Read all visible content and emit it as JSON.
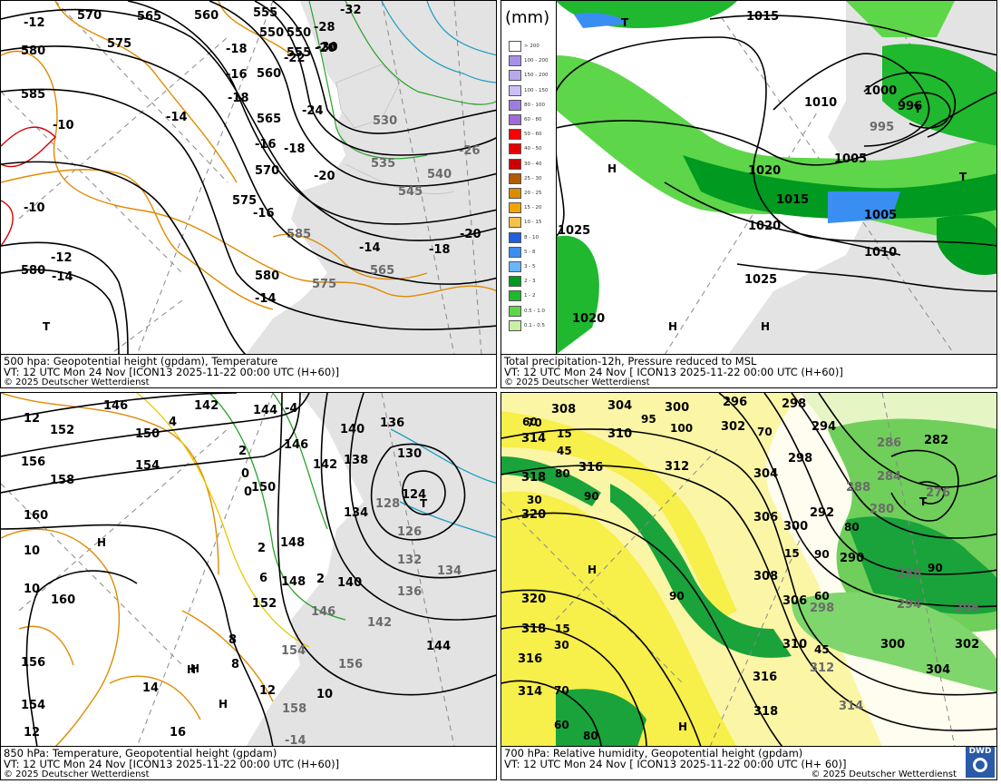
{
  "panels": [
    {
      "id": "p1",
      "title_line": "500 hpa: Geopotential height (gpdam), Temperature",
      "valid_line": "VT: 12 UTC Mon  24 Nov [ICON13 2025-11-22 00:00 UTC (H+60)]",
      "copyright": "© 2025 Deutscher Wetterdienst",
      "height_labels": [
        "570",
        "565",
        "560",
        "555",
        "550",
        "-32",
        "575",
        "580",
        "585",
        "580",
        "575",
        "570",
        "565",
        "560",
        "555",
        "550",
        "545",
        "540",
        "535",
        "530",
        "565",
        "575",
        "580",
        "585"
      ],
      "temp_labels": [
        "-12",
        "-10",
        "-10",
        "-12",
        "-14",
        "-14",
        "-14",
        "-16",
        "-16",
        "-18",
        "-18",
        "-20",
        "-22",
        "-24",
        "-26",
        "-28",
        "-18",
        "-20",
        "-16",
        "-14",
        "-18",
        "-20",
        "-30"
      ],
      "markers": [
        "T"
      ]
    },
    {
      "id": "p2",
      "title_line": "Total precipitation-12h, Pressure reduced to MSL",
      "valid_line": "VT: 12 UTC Mon  24 Nov [ ICON13 2025-11-22 00:00 UTC (H+60)]",
      "copyright": "© 2025 Deutscher Wetterdienst",
      "legend_unit": "(mm)",
      "legend_classes": [
        "> 200",
        "100 - 200",
        "150 - 200",
        "100 - 150",
        "80 - 100",
        "60 - 80",
        "50 - 60",
        "40 - 50",
        "30 - 40",
        "25 - 30",
        "20 - 25",
        "15 - 20",
        "10 - 15",
        "8 - 10",
        "5 - 8",
        "3 - 5",
        "2 - 3",
        "1 - 2",
        "0.5 - 1.0",
        "0.1 - 0.5"
      ],
      "legend_colors": [
        "#ffffff",
        "#a98fe6",
        "#b9a8ee",
        "#cdbff5",
        "#9f7de0",
        "#a06bd8",
        "#ff0000",
        "#e60000",
        "#cc0000",
        "#b25c00",
        "#d98c00",
        "#f2a400",
        "#f7c14a",
        "#2060e0",
        "#3a8ef2",
        "#6ab5fa",
        "#009a20",
        "#1fb82e",
        "#5ed64a",
        "#c7f0a2"
      ],
      "pressure_labels": [
        "1015",
        "1010",
        "1000",
        "996",
        "995",
        "1005",
        "1020",
        "1015",
        "1020",
        "1005",
        "1010",
        "1025",
        "1020",
        "1025"
      ],
      "markers": [
        "H",
        "H",
        "H",
        "T",
        "T",
        "T"
      ]
    },
    {
      "id": "p3",
      "title_line": "850 hPa:  Temperature, Geopotential height (gpdam)",
      "valid_line": "VT: 12 UTC Mon  24 Nov [ICON13 2025-11-22 00:00 UTC (H+60)]",
      "copyright": "© 2025 Deutscher Wetterdienst",
      "height_labels": [
        "146",
        "142",
        "144",
        "152",
        "150",
        "156",
        "158",
        "154",
        "160",
        "146",
        "140",
        "136",
        "142",
        "138",
        "130",
        "124",
        "126",
        "132",
        "134",
        "136",
        "142",
        "148",
        "146",
        "152",
        "150",
        "154",
        "156",
        "158",
        "156",
        "154",
        "160",
        "148",
        "144",
        "140",
        "134",
        "128"
      ],
      "temp_labels": [
        "12",
        "10",
        "10",
        "8",
        "6",
        "2",
        "0",
        "2",
        "4",
        "-4",
        "8",
        "14",
        "12",
        "10",
        "16",
        "12",
        "-14",
        "2",
        "0"
      ],
      "markers": [
        "H",
        "H",
        "H",
        "H",
        "T"
      ]
    },
    {
      "id": "p4",
      "title_line": "700 hPa:  Relative humidity, Geopotential height (gpdam)",
      "valid_line": "VT: 12 UTC Mon  24 Nov [ ICON13 2025-11-22 00:00 UTC (H+ 60)]",
      "copyright": "© 2025 Deutscher Wetterdienst",
      "height_labels": [
        "308",
        "304",
        "300",
        "296",
        "298",
        "294",
        "302",
        "310",
        "314",
        "316",
        "312",
        "318",
        "320",
        "304",
        "306",
        "300",
        "298",
        "292",
        "288",
        "286",
        "284",
        "282",
        "276",
        "280",
        "290",
        "288",
        "294",
        "296",
        "302",
        "300",
        "304",
        "298",
        "306",
        "308",
        "310",
        "312",
        "314",
        "316",
        "318",
        "320",
        "318",
        "316",
        "314"
      ],
      "rh_labels": [
        "60",
        "70",
        "15",
        "45",
        "95",
        "100",
        "70",
        "80",
        "90",
        "30",
        "90",
        "15",
        "90",
        "80",
        "60",
        "45",
        "15",
        "30",
        "70",
        "90",
        "60",
        "80"
      ],
      "markers": [
        "H",
        "H",
        "T"
      ],
      "logo_text": "DWD"
    }
  ]
}
